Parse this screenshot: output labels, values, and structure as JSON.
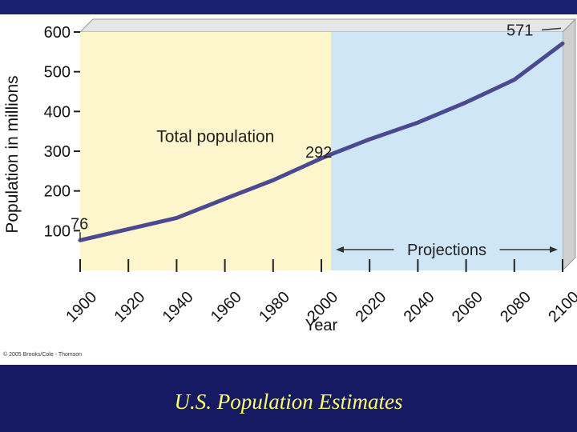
{
  "slide": {
    "title": "U.S. Population Estimates",
    "copyright": "© 2005 Brooks/Cole - Thomson"
  },
  "colors": {
    "top_bar": "#1a1f6e",
    "bottom_bar": "#161a63",
    "title": "#ffff66",
    "historic_region": "#fdf5cc",
    "projection_region": "#cfe6f7",
    "line": "#4b4a91",
    "axis": "#222222"
  },
  "chart_data": {
    "type": "line",
    "title": "",
    "xlabel": "Year",
    "ylabel": "Population in millions",
    "xlim": [
      1900,
      2100
    ],
    "ylim": [
      0,
      600
    ],
    "x_ticks": [
      1900,
      1920,
      1940,
      1960,
      1980,
      2000,
      2020,
      2040,
      2060,
      2080,
      2100
    ],
    "y_ticks": [
      100,
      200,
      300,
      400,
      500,
      600
    ],
    "series": [
      {
        "name": "Total population",
        "x": [
          1900,
          1940,
          1960,
          1980,
          2000,
          2004,
          2020,
          2040,
          2060,
          2080,
          2100
        ],
        "y": [
          76,
          132,
          180,
          227,
          282,
          292,
          330,
          372,
          423,
          480,
          571
        ]
      }
    ],
    "regions": [
      {
        "name": "historic",
        "from": 1900,
        "to": 2004
      },
      {
        "name": "projections",
        "from": 2004,
        "to": 2100,
        "label": "Projections"
      }
    ],
    "annotations": [
      {
        "text": "Total population",
        "x": 1925,
        "y": 335
      },
      {
        "text": "76",
        "x": 1900,
        "y": 76
      },
      {
        "text": "292",
        "x": 2004,
        "y": 292
      },
      {
        "text": "571",
        "x": 2100,
        "y": 571
      }
    ]
  }
}
